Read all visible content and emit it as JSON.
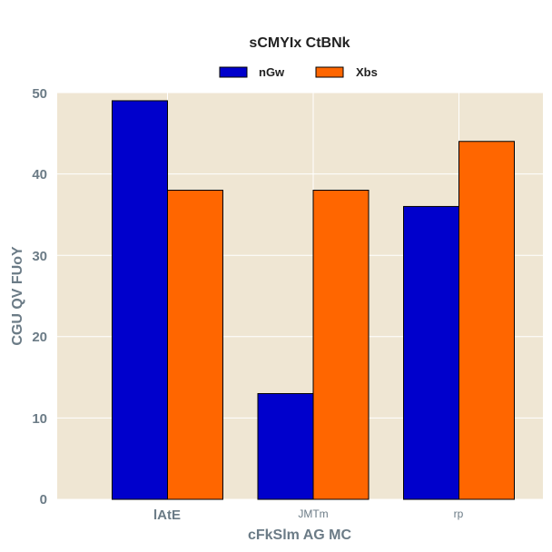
{
  "chart_data": {
    "type": "bar",
    "title": "sCMYIx CtBNk",
    "xlabel": "cFkSlm AG MC",
    "ylabel": "CGU QV FUoY",
    "categories": [
      "lAtE",
      "JMTm",
      "rp"
    ],
    "series": [
      {
        "name": "nGw",
        "values": [
          49,
          13,
          36
        ],
        "color": "#0000cc"
      },
      {
        "name": "Xbs",
        "values": [
          38,
          38,
          44
        ],
        "color": "#ff6600"
      }
    ],
    "ylim": [
      0,
      50
    ],
    "yticks": [
      0,
      10,
      20,
      30,
      40,
      50
    ],
    "grid": true,
    "legend_position": "top-center",
    "background_color": "#efe6d3"
  }
}
